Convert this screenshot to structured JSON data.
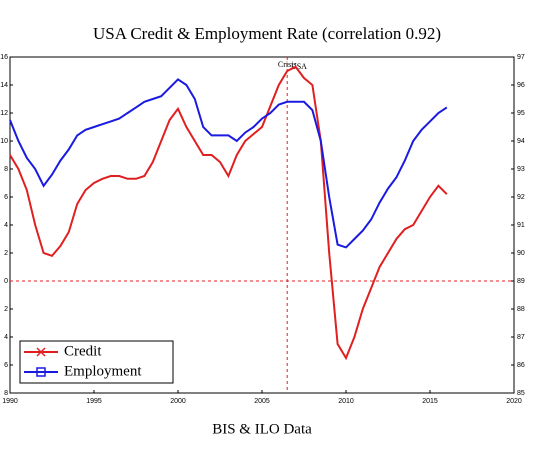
{
  "chart_data": {
    "type": "line",
    "title": "USA Credit & Employment Rate (correlation 0.92)",
    "x_label": "BIS & ILO Data",
    "annotations": [
      {
        "text": "Crisis",
        "x": 2006.5
      },
      {
        "text": "USA",
        "x": 2007.2
      }
    ],
    "vline": 2006.5,
    "hline": 0,
    "reference_color": "#e02020",
    "x": [
      1990,
      1990.5,
      1991,
      1991.5,
      1992,
      1992.5,
      1993,
      1993.5,
      1994,
      1994.5,
      1995,
      1995.5,
      1996,
      1996.5,
      1997,
      1997.5,
      1998,
      1998.5,
      1999,
      1999.5,
      2000,
      2000.5,
      2001,
      2001.5,
      2002,
      2002.5,
      2003,
      2003.5,
      2004,
      2004.5,
      2005,
      2005.5,
      2006,
      2006.5,
      2007,
      2007.5,
      2008,
      2008.5,
      2009,
      2009.5,
      2010,
      2010.5,
      2011,
      2011.5,
      2012,
      2012.5,
      2013,
      2013.5,
      2014,
      2014.5,
      2015,
      2015.5,
      2016
    ],
    "series": [
      {
        "name": "Credit",
        "color": "#e02020",
        "axis": "y",
        "values": [
          9,
          8,
          6.5,
          4,
          2,
          1.8,
          2.5,
          3.5,
          5.5,
          6.5,
          7,
          7.3,
          7.5,
          7.5,
          7.3,
          7.3,
          7.5,
          8.5,
          10,
          11.5,
          12.3,
          11,
          10,
          9,
          9,
          8.5,
          7.5,
          9,
          10,
          10.5,
          11,
          12.5,
          14,
          15,
          15.3,
          14.5,
          14,
          10,
          2,
          -4.5,
          -5.5,
          -4,
          -2,
          -0.5,
          1,
          2,
          3,
          3.7,
          4,
          5,
          6,
          6.8,
          6.2
        ]
      },
      {
        "name": "Employment",
        "color": "#1a1ae0",
        "axis": "y2",
        "values": [
          94.75,
          94,
          93.4,
          93,
          92.4,
          92.8,
          93.3,
          93.7,
          94.2,
          94.4,
          94.5,
          94.6,
          94.7,
          94.8,
          95,
          95.2,
          95.4,
          95.5,
          95.6,
          95.9,
          96.2,
          96,
          95.5,
          94.5,
          94.2,
          94.2,
          94.2,
          94,
          94.3,
          94.5,
          94.8,
          95,
          95.3,
          95.4,
          95.4,
          95.4,
          95.1,
          94,
          92,
          90.3,
          90.2,
          90.5,
          90.8,
          91.2,
          91.8,
          92.3,
          92.7,
          93.3,
          94,
          94.4,
          94.7,
          95,
          95.2
        ]
      }
    ],
    "xlim": [
      1990,
      2020
    ],
    "xticks": [
      1990,
      1995,
      2000,
      2005,
      2010,
      2015,
      2020
    ],
    "ylim": [
      -8,
      16
    ],
    "yticks": [
      {
        "value": -8,
        "label": "8"
      },
      {
        "value": -6,
        "label": "6"
      },
      {
        "value": -4,
        "label": "4"
      },
      {
        "value": -2,
        "label": "2"
      },
      0,
      2,
      4,
      6,
      8,
      10,
      12,
      14,
      16
    ],
    "y2lim": [
      85,
      97
    ],
    "y2ticks": [
      85,
      86,
      87,
      88,
      89,
      90,
      91,
      92,
      93,
      94,
      95,
      96,
      97
    ],
    "legend": "lower left"
  }
}
